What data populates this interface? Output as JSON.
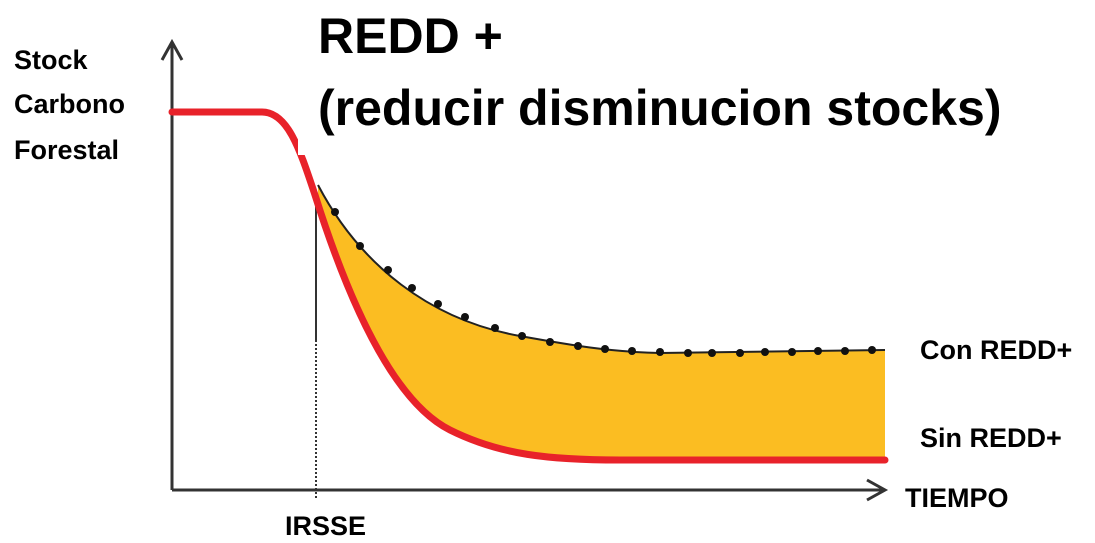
{
  "title": {
    "line1": "REDD +",
    "line2": "(reducir disminucion stocks)"
  },
  "y_axis_label": [
    "Stock",
    "Carbono",
    "Forestal"
  ],
  "x_axis_label": "TIEMPO",
  "marker_label": "IRSSE",
  "curve_labels": {
    "with": "Con REDD+",
    "without": "Sin REDD+"
  }
}
